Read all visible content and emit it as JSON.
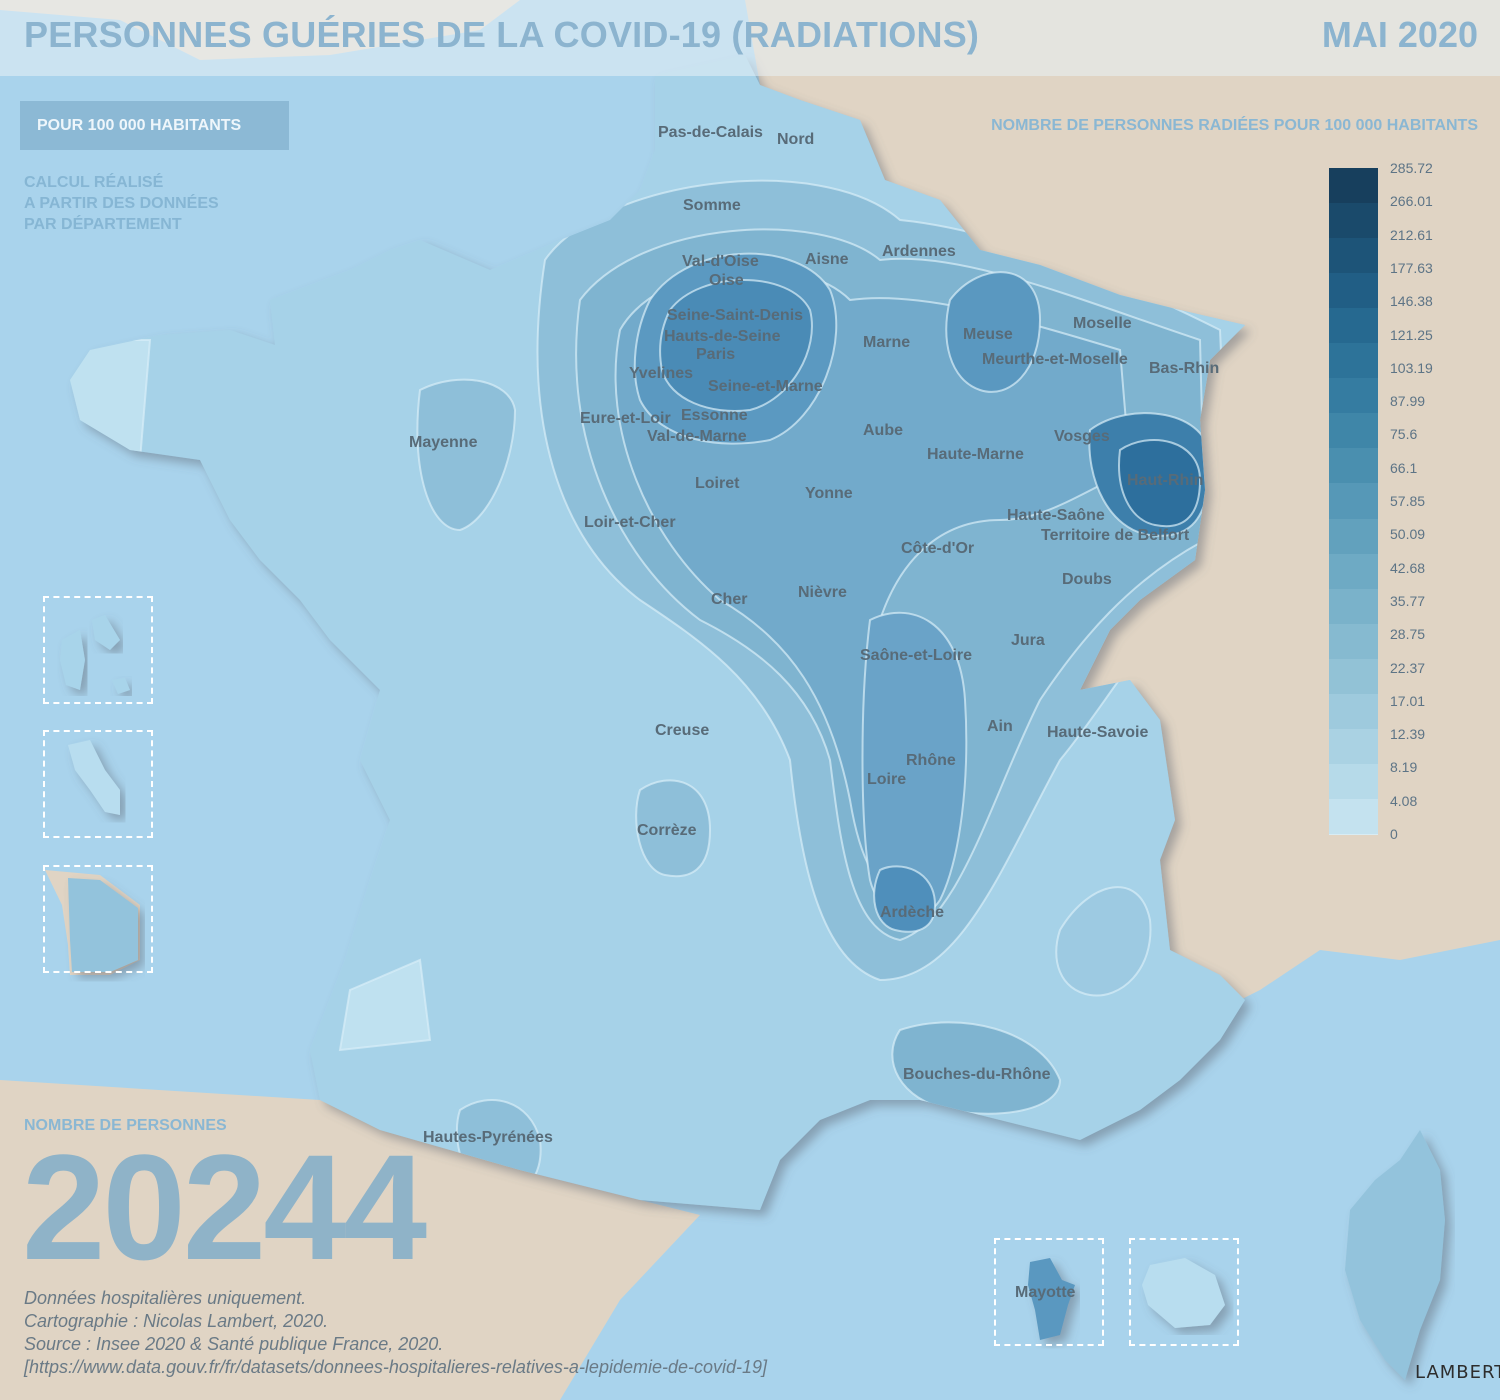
{
  "header": {
    "title": "PERSONNES GUÉRIES DE LA COVID-19 (RADIATIONS)",
    "date": "MAI 2020"
  },
  "badge": "POUR 100 000 HABITANTS",
  "note": "CALCUL RÉALISÉ\nA PARTIR DES DONNÉES\nPAR DÉPARTEMENT",
  "legend": {
    "title": "NOMBRE DE PERSONNES RADIÉES POUR 100 000 HABITANTS",
    "ticks": [
      "285.72",
      "266.01",
      "212.61",
      "177.63",
      "146.38",
      "121.25",
      "103.19",
      "87.99",
      "75.6",
      "66.1",
      "57.85",
      "50.09",
      "42.68",
      "35.77",
      "28.75",
      "22.37",
      "17.01",
      "12.39",
      "8.19",
      "4.08",
      "0"
    ],
    "colors": [
      "#173f5d",
      "#1a4a6b",
      "#1d5478",
      "#215e85",
      "#266990",
      "#2d7399",
      "#357ca1",
      "#3f86a8",
      "#4a8faf",
      "#5698b7",
      "#62a1bd",
      "#6eaac4",
      "#7ab2ca",
      "#86bad0",
      "#92c2d6",
      "#9ecadd",
      "#aad2e3",
      "#b6dae9",
      "#c4e2ef"
    ]
  },
  "departments": [
    {
      "name": "Pas-de-Calais"
    },
    {
      "name": "Nord"
    },
    {
      "name": "Somme"
    },
    {
      "name": "Val-d'Oise"
    },
    {
      "name": "Oise"
    },
    {
      "name": "Aisne"
    },
    {
      "name": "Ardennes"
    },
    {
      "name": "Seine-Saint-Denis"
    },
    {
      "name": "Hauts-de-Seine"
    },
    {
      "name": "Paris"
    },
    {
      "name": "Yvelines"
    },
    {
      "name": "Seine-et-Marne"
    },
    {
      "name": "Marne"
    },
    {
      "name": "Meuse"
    },
    {
      "name": "Moselle"
    },
    {
      "name": "Meurthe-et-Moselle"
    },
    {
      "name": "Bas-Rhin"
    },
    {
      "name": "Mayenne"
    },
    {
      "name": "Eure-et-Loir"
    },
    {
      "name": "Essonne"
    },
    {
      "name": "Val-de-Marne"
    },
    {
      "name": "Aube"
    },
    {
      "name": "Vosges"
    },
    {
      "name": "Haute-Marne"
    },
    {
      "name": "Haut-Rhin"
    },
    {
      "name": "Loiret"
    },
    {
      "name": "Yonne"
    },
    {
      "name": "Haute-Saône"
    },
    {
      "name": "Loir-et-Cher"
    },
    {
      "name": "Territoire de Belfort"
    },
    {
      "name": "Côte-d'Or"
    },
    {
      "name": "Doubs"
    },
    {
      "name": "Cher"
    },
    {
      "name": "Nièvre"
    },
    {
      "name": "Jura"
    },
    {
      "name": "Saône-et-Loire"
    },
    {
      "name": "Ain"
    },
    {
      "name": "Haute-Savoie"
    },
    {
      "name": "Creuse"
    },
    {
      "name": "Rhône"
    },
    {
      "name": "Loire"
    },
    {
      "name": "Corrèze"
    },
    {
      "name": "Ardèche"
    },
    {
      "name": "Bouches-du-Rhône"
    },
    {
      "name": "Hautes-Pyrénées"
    },
    {
      "name": "Mayotte"
    }
  ],
  "total": {
    "label": "NOMBRE DE PERSONNES",
    "value": "20244"
  },
  "credits": [
    "Données hospitalières uniquement.",
    "Cartographie : Nicolas Lambert, 2020.",
    "Source : Insee 2020 & Santé publique France, 2020.",
    "[https://www.data.gouv.fr/fr/datasets/donnees-hospitalieres-relatives-a-lepidemie-de-covid-19]"
  ],
  "signature": "LAMBERT",
  "colors": {
    "sea": "#a9d3ec",
    "land_neighbors": "#e0d4c4",
    "title": "#8cb4cf"
  }
}
